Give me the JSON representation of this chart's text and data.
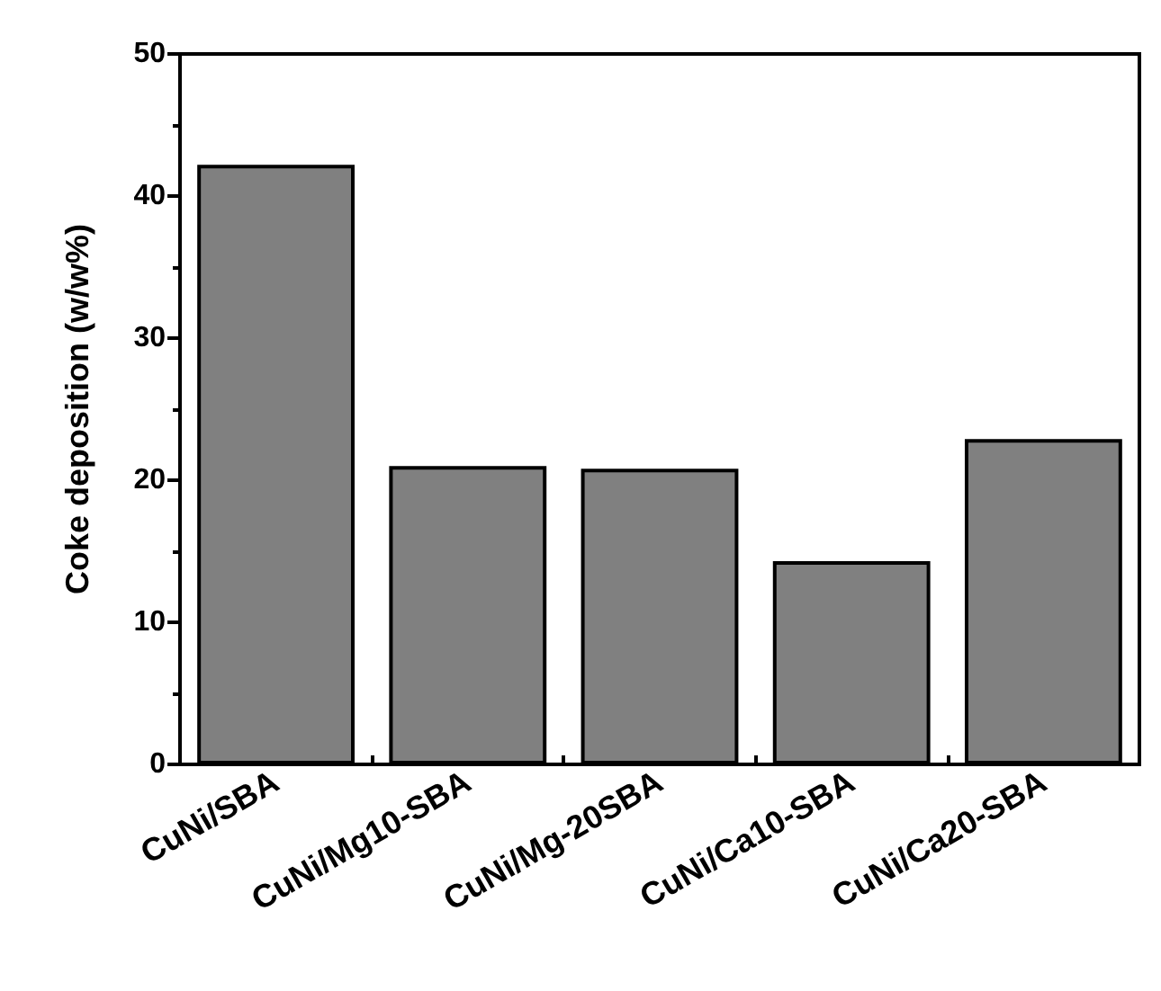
{
  "chart_data": {
    "type": "bar",
    "ylabel": "Coke deposition (w/w%)",
    "categories": [
      "CuNi/SBA",
      "CuNi/Mg10-SBA",
      "CuNi/Mg-20SBA",
      "CuNi/Ca10-SBA",
      "CuNi/Ca20-SBA"
    ],
    "values": [
      42.2,
      21.0,
      20.8,
      14.3,
      22.9
    ],
    "color": "#808080",
    "ylim": [
      0,
      50
    ],
    "yticks": [
      0,
      10,
      20,
      30,
      40,
      50
    ],
    "grid": false
  }
}
